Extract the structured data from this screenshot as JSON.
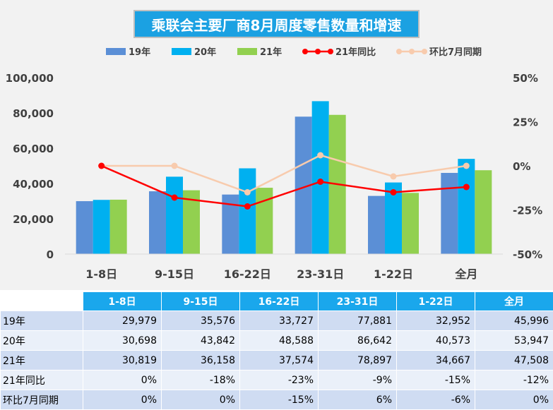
{
  "chart_data": {
    "type": "bar",
    "title": "乘联会主要厂商8月周度零售数量和增速",
    "categories": [
      "1-8日",
      "9-15日",
      "16-22日",
      "23-31日",
      "1-22日",
      "全月"
    ],
    "series": [
      {
        "name": "19年",
        "kind": "bar",
        "color": "#5b8fd6",
        "values": [
          29979,
          35576,
          33727,
          77881,
          32952,
          45996
        ]
      },
      {
        "name": "20年",
        "kind": "bar",
        "color": "#00b0f0",
        "values": [
          30698,
          43842,
          48588,
          86642,
          40573,
          53947
        ]
      },
      {
        "name": "21年",
        "kind": "bar",
        "color": "#92d050",
        "values": [
          30819,
          36158,
          37574,
          78897,
          34667,
          47508
        ]
      },
      {
        "name": "21年同比",
        "kind": "line",
        "axis": "right",
        "color": "#ff0000",
        "values": [
          0,
          -18,
          -23,
          -9,
          -15,
          -12
        ]
      },
      {
        "name": "环比7月同期",
        "kind": "line",
        "axis": "right",
        "color": "#f8cbad",
        "values": [
          0,
          0,
          -15,
          6,
          -6,
          0
        ]
      }
    ],
    "y_left": {
      "range": [
        0,
        100000
      ],
      "ticks": [
        "100,000",
        "80,000",
        "60,000",
        "40,000",
        "20,000",
        "0"
      ]
    },
    "y_right": {
      "range": [
        -50,
        50
      ],
      "unit": "%",
      "ticks": [
        "50%",
        "25%",
        "0%",
        "-25%",
        "-50%"
      ]
    },
    "legend_position": "top",
    "grid": false
  },
  "table": {
    "columns": [
      "1-8日",
      "9-15日",
      "16-22日",
      "23-31日",
      "1-22日",
      "全月"
    ],
    "rows": [
      {
        "label": "19年",
        "cells": [
          "29,979",
          "35,576",
          "33,727",
          "77,881",
          "32,952",
          "45,996"
        ]
      },
      {
        "label": "20年",
        "cells": [
          "30,698",
          "43,842",
          "48,588",
          "86,642",
          "40,573",
          "53,947"
        ]
      },
      {
        "label": "21年",
        "cells": [
          "30,819",
          "36,158",
          "37,574",
          "78,897",
          "34,667",
          "47,508"
        ]
      },
      {
        "label": "21年同比",
        "cells": [
          "0%",
          "-18%",
          "-23%",
          "-9%",
          "-15%",
          "-12%"
        ]
      },
      {
        "label": "环比7月同期",
        "cells": [
          "0%",
          "0%",
          "-15%",
          "6%",
          "-6%",
          "0%"
        ]
      }
    ]
  }
}
